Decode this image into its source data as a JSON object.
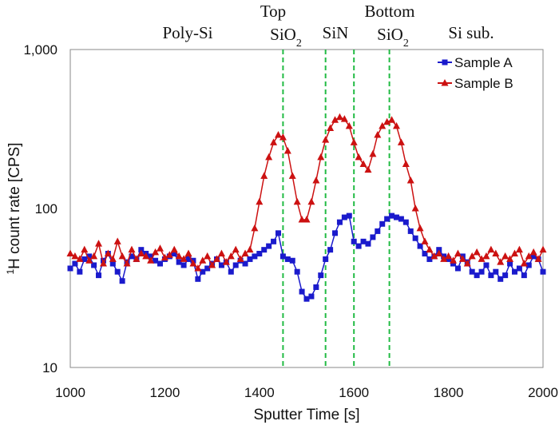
{
  "chart_data": {
    "type": "line",
    "xlabel": "Sputter Time [s]",
    "ylabel_sup": "1",
    "ylabel": "H count rate  [CPS]",
    "xlim": [
      1000,
      2000
    ],
    "ylim": [
      10,
      1000
    ],
    "yscale": "log",
    "xticks": [
      "1000",
      "1200",
      "1400",
      "1600",
      "1800",
      "2000"
    ],
    "yticks": [
      "10",
      "100",
      "1,000"
    ],
    "grid": false,
    "legend": "top-right",
    "layer_boundaries": [
      1450,
      1540,
      1600,
      1675
    ],
    "layer_labels": [
      {
        "text": "Poly-Si"
      },
      {
        "text": "Top",
        "text2": "SiO",
        "sub": "2"
      },
      {
        "text": "SiN"
      },
      {
        "text": "Bottom",
        "text2": "SiO",
        "sub": "2"
      },
      {
        "text": "Si sub."
      }
    ],
    "x_start": 1000,
    "x_step": 10,
    "series": [
      {
        "name": "Sample A",
        "color": "#1a1acc",
        "marker": "square",
        "values": [
          42,
          45,
          40,
          48,
          50,
          44,
          38,
          47,
          52,
          45,
          40,
          35,
          46,
          50,
          48,
          55,
          52,
          50,
          47,
          45,
          48,
          50,
          52,
          46,
          44,
          48,
          47,
          36,
          40,
          42,
          45,
          48,
          44,
          46,
          40,
          44,
          47,
          45,
          48,
          50,
          52,
          55,
          58,
          62,
          70,
          50,
          48,
          47,
          40,
          30,
          27,
          28,
          32,
          38,
          48,
          55,
          70,
          82,
          88,
          90,
          62,
          58,
          62,
          60,
          66,
          72,
          80,
          86,
          90,
          88,
          86,
          82,
          72,
          65,
          58,
          52,
          48,
          50,
          55,
          50,
          48,
          45,
          42,
          50,
          46,
          40,
          38,
          40,
          44,
          38,
          40,
          36,
          38,
          45,
          40,
          42,
          38,
          44,
          50,
          48,
          40
        ]
      },
      {
        "name": "Sample B",
        "color": "#cc1111",
        "marker": "triangle",
        "values": [
          52,
          50,
          48,
          55,
          47,
          50,
          60,
          45,
          52,
          48,
          62,
          50,
          45,
          55,
          48,
          52,
          50,
          47,
          53,
          56,
          49,
          51,
          55,
          50,
          48,
          52,
          45,
          42,
          47,
          50,
          44,
          48,
          52,
          46,
          50,
          55,
          48,
          52,
          55,
          75,
          110,
          160,
          210,
          260,
          290,
          280,
          230,
          160,
          110,
          85,
          85,
          110,
          150,
          210,
          270,
          320,
          360,
          375,
          365,
          330,
          260,
          210,
          190,
          175,
          220,
          290,
          330,
          350,
          360,
          330,
          260,
          190,
          150,
          100,
          75,
          62,
          55,
          50,
          52,
          48,
          50,
          47,
          52,
          48,
          45,
          50,
          53,
          48,
          50,
          55,
          52,
          46,
          50,
          48,
          52,
          55,
          45,
          50,
          53,
          48,
          55
        ]
      }
    ],
    "boundary_color": "#22bb44"
  }
}
